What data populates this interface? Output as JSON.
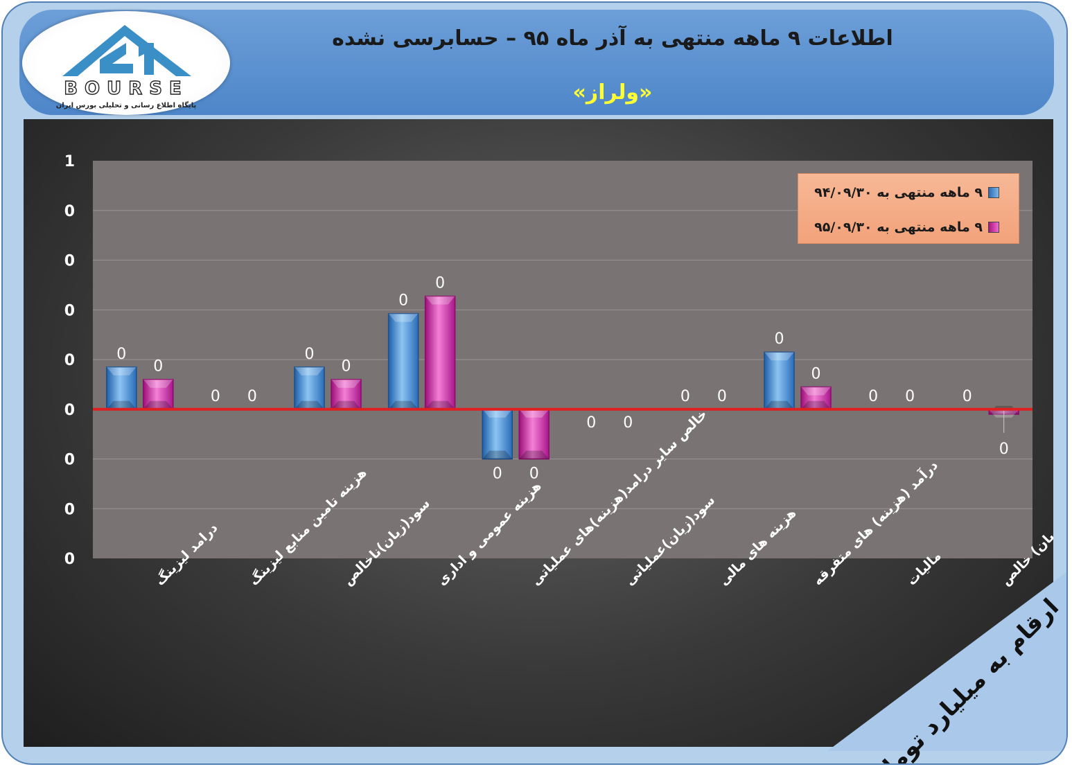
{
  "header": {
    "title": "اطلاعات ۹ ماهه منتهی به آذر ماه ۹۵ – حسابرسی نشده",
    "subtitle": "«ولراز»",
    "logo_text": "BOURSE",
    "logo_tagline": "پایگاه اطلاع رسانی و تحلیلی بورس ایران"
  },
  "units_label": "ارقام به میلیارد تومان",
  "colors": {
    "series_1": "#4a90d9",
    "series_2": "#d63ab5",
    "zero_line": "#e02020"
  },
  "chart_data": {
    "type": "bar",
    "title": "اطلاعات ۹ ماهه منتهی به آذر ماه ۹۵ – حسابرسی نشده",
    "categories": [
      "درامد لیزینگ",
      "هزینه تامین منابع لیزینگ",
      "سود(زیان)ناخالص",
      "هزینه عمومی و اداری",
      "خالص سایر درامد(هزینه)های عملیاتی",
      "سود(زیان)عملیاتی",
      "هزینه های مالی",
      "درآمد (هزینه) های متفرقه",
      "مالیات",
      "سود(زیان) خالص"
    ],
    "y_tick_labels": [
      "1",
      "0",
      "0",
      "0",
      "0",
      "0",
      "0",
      "0",
      "0"
    ],
    "ylim": [
      -0.6,
      1.0
    ],
    "legend_position": "top-right",
    "series": [
      {
        "name": "۹ ماهه منتهی به ۹۴/۰۹/۳۰",
        "values": [
          0.17,
          0,
          0.17,
          0.385,
          -0.2,
          0,
          0,
          0.23,
          0,
          0
        ],
        "labels": [
          "0",
          "0",
          "0",
          "0",
          "0",
          "0",
          "0",
          "0",
          "0",
          "0"
        ]
      },
      {
        "name": "۹ ماهه منتهی به ۹۵/۰۹/۳۰",
        "values": [
          0.12,
          0,
          0.12,
          0.455,
          -0.2,
          0,
          0,
          0.09,
          0,
          -0.02
        ],
        "labels": [
          "0",
          "0",
          "0",
          "0",
          "0",
          "0",
          "0",
          "0",
          "0",
          "0"
        ]
      }
    ]
  }
}
